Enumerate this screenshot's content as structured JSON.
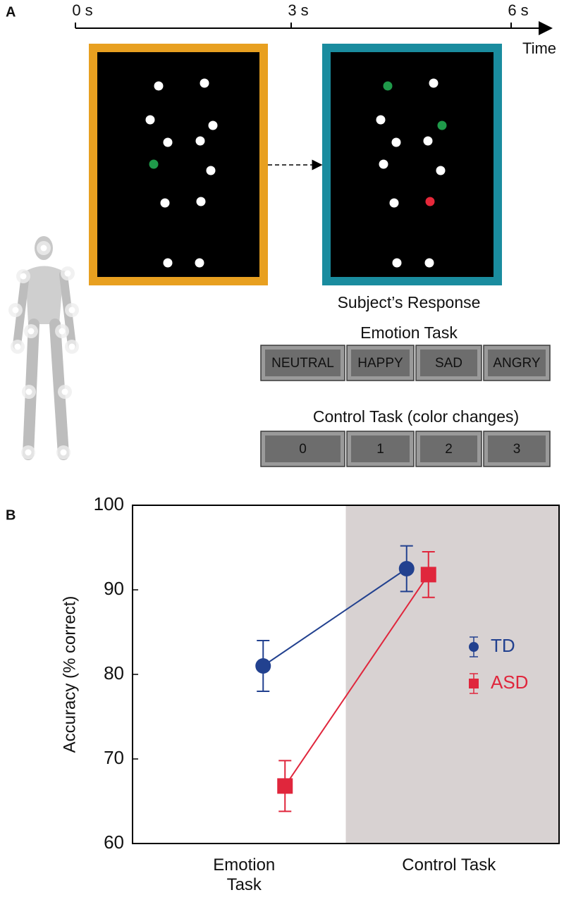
{
  "panel_a": {
    "label": "A",
    "timeline": {
      "ticks": [
        "0 s",
        "3 s",
        "6 s"
      ],
      "axis_label": "Time"
    },
    "response_label": "Subject’s Response",
    "emotion_task": {
      "title": "Emotion Task",
      "buttons": [
        "NEUTRAL",
        "HAPPY",
        "SAD",
        "ANGRY"
      ]
    },
    "control_task": {
      "title": "Control Task (color changes)",
      "buttons": [
        "0",
        "1",
        "2",
        "3"
      ]
    }
  },
  "chart_data": {
    "type": "line",
    "panel_label": "B",
    "y_label": "Accuracy (% correct)",
    "categories": [
      "Emotion Task",
      "Control Task"
    ],
    "series": [
      {
        "name": "TD",
        "color": "#22418f",
        "marker": "circle",
        "values": [
          81,
          92.5
        ],
        "errors": [
          3,
          2.7
        ]
      },
      {
        "name": "ASD",
        "color": "#e0263c",
        "marker": "square",
        "values": [
          66.8,
          91.8
        ],
        "errors": [
          3,
          2.7
        ]
      }
    ],
    "ylim": [
      60,
      100
    ],
    "yticks": [
      60,
      70,
      80,
      90,
      100
    ]
  }
}
